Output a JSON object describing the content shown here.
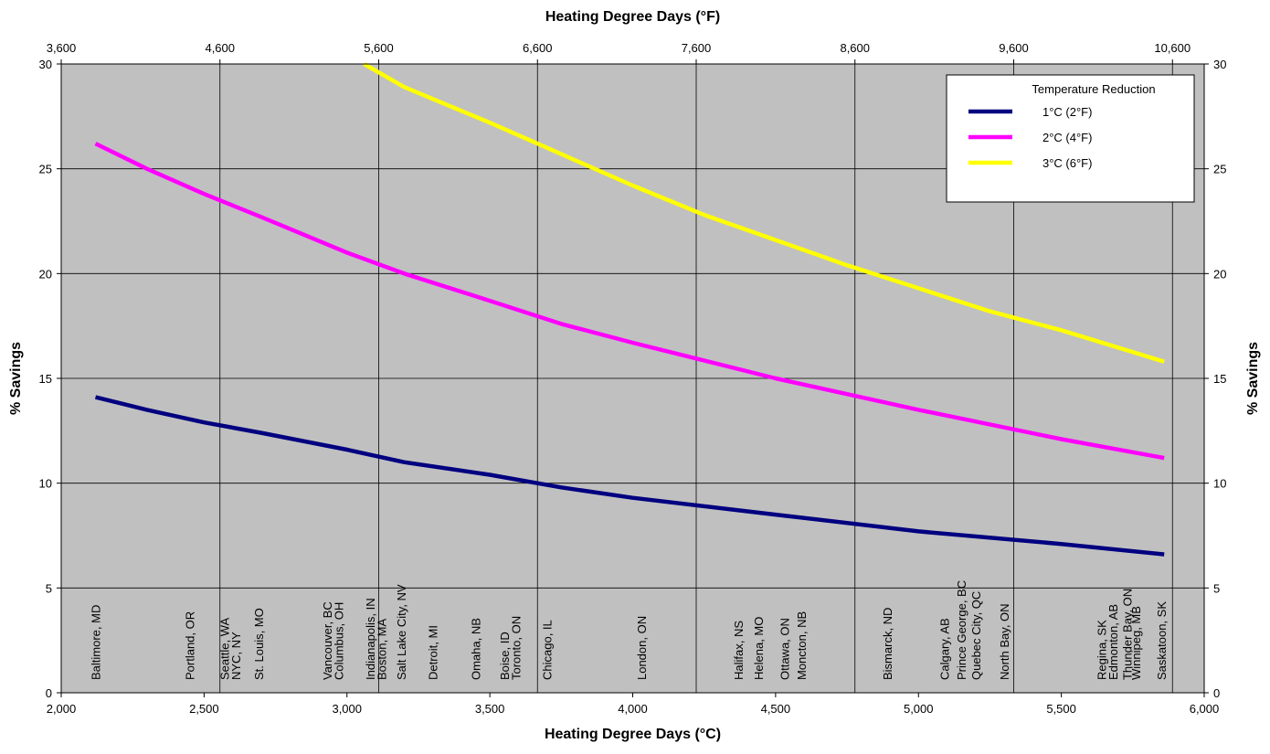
{
  "chart_data": {
    "type": "line",
    "xlabel_bottom": "Heating Degree Days (°C)",
    "xlabel_top": "Heating Degree Days (°F)",
    "ylabel_left": "% Savings",
    "ylabel_right": "% Savings",
    "xlim": [
      2000,
      6000
    ],
    "ylim": [
      0,
      30
    ],
    "grid": true,
    "x_ticks_bottom": [
      "2,000",
      "2,500",
      "3,000",
      "3,500",
      "4,000",
      "4,500",
      "5,000",
      "5,500",
      "6,000"
    ],
    "x_ticks_top": [
      "3,600",
      "4,600",
      "5,600",
      "6,600",
      "7,600",
      "8,600",
      "9,600",
      "10,600"
    ],
    "y_ticks": [
      "0",
      "5",
      "10",
      "15",
      "20",
      "25",
      "30"
    ],
    "legend": {
      "title": "Temperature Reduction",
      "position": "top-right"
    },
    "series": [
      {
        "name": "1°C (2°F)",
        "color": "#000080",
        "points": [
          [
            2120,
            14.1
          ],
          [
            2300,
            13.5
          ],
          [
            2500,
            12.9
          ],
          [
            2700,
            12.4
          ],
          [
            3000,
            11.6
          ],
          [
            3200,
            11.0
          ],
          [
            3500,
            10.4
          ],
          [
            3750,
            9.8
          ],
          [
            4000,
            9.3
          ],
          [
            4500,
            8.5
          ],
          [
            5000,
            7.7
          ],
          [
            5500,
            7.1
          ],
          [
            5860,
            6.6
          ]
        ]
      },
      {
        "name": "2°C (4°F)",
        "color": "#ff00ff",
        "points": [
          [
            2120,
            26.2
          ],
          [
            2300,
            25.0
          ],
          [
            2500,
            23.8
          ],
          [
            2700,
            22.7
          ],
          [
            3000,
            21.0
          ],
          [
            3200,
            20.0
          ],
          [
            3500,
            18.7
          ],
          [
            3750,
            17.6
          ],
          [
            4000,
            16.7
          ],
          [
            4500,
            15.0
          ],
          [
            5000,
            13.5
          ],
          [
            5500,
            12.1
          ],
          [
            5860,
            11.2
          ]
        ]
      },
      {
        "name": "3°C (6°F)",
        "color": "#ffff00",
        "points": [
          [
            3060,
            30.0
          ],
          [
            3200,
            28.9
          ],
          [
            3500,
            27.2
          ],
          [
            3750,
            25.7
          ],
          [
            4000,
            24.2
          ],
          [
            4250,
            22.8
          ],
          [
            4500,
            21.6
          ],
          [
            4750,
            20.4
          ],
          [
            5000,
            19.3
          ],
          [
            5250,
            18.2
          ],
          [
            5500,
            17.3
          ],
          [
            5860,
            15.8
          ]
        ]
      }
    ],
    "city_labels": [
      {
        "text": "Baltimore, MD",
        "x": 2120
      },
      {
        "text": "Portland, OR",
        "x": 2450
      },
      {
        "text": "Seattle, WA",
        "x": 2570
      },
      {
        "text": "NYC, NY",
        "x": 2610
      },
      {
        "text": "St. Louis, MO",
        "x": 2690
      },
      {
        "text": "Vancouver, BC",
        "x": 2930
      },
      {
        "text": "Columbus, OH",
        "x": 2970
      },
      {
        "text": "Indianapolis, IN",
        "x": 3080
      },
      {
        "text": "Boston, MA",
        "x": 3120
      },
      {
        "text": "Salt Lake City, NV",
        "x": 3190
      },
      {
        "text": "Detroit, MI",
        "x": 3300
      },
      {
        "text": "Omaha, NB",
        "x": 3450
      },
      {
        "text": "Boise, ID",
        "x": 3550
      },
      {
        "text": "Toronto, ON",
        "x": 3590
      },
      {
        "text": "Chicago, IL",
        "x": 3700
      },
      {
        "text": "London, ON",
        "x": 4030
      },
      {
        "text": "Halifax, NS",
        "x": 4370
      },
      {
        "text": "Helena, MO",
        "x": 4440
      },
      {
        "text": "Ottawa, ON",
        "x": 4530
      },
      {
        "text": "Moncton, NB",
        "x": 4590
      },
      {
        "text": "Bismarck, ND",
        "x": 4890
      },
      {
        "text": "Calgary, AB",
        "x": 5090
      },
      {
        "text": "Prince George, BC",
        "x": 5150
      },
      {
        "text": "Quebec City, QC",
        "x": 5200
      },
      {
        "text": "North Bay, ON",
        "x": 5300
      },
      {
        "text": "Regina, SK",
        "x": 5640
      },
      {
        "text": "Edmonton, AB",
        "x": 5680
      },
      {
        "text": "Thunder Bay, ON",
        "x": 5730
      },
      {
        "text": "Winnipeg, MB",
        "x": 5760
      },
      {
        "text": "Saskatoon, SK",
        "x": 5850
      }
    ]
  }
}
